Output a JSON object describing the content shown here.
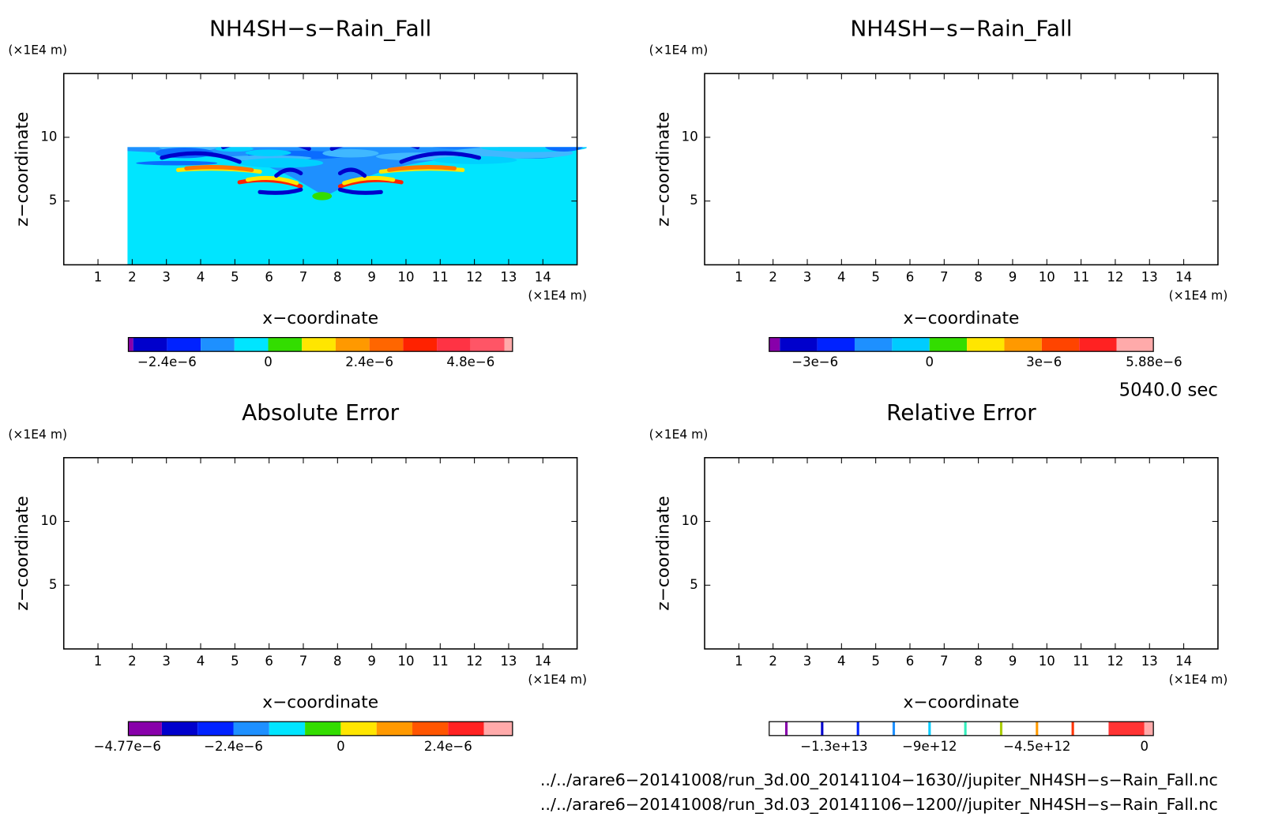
{
  "chart_data": [
    {
      "type": "contour",
      "title": "NH4SH−s−Rain_Fall",
      "xlabel": "x−coordinate",
      "ylabel": "z−coordinate",
      "x_unit": "(×1E4 m)",
      "y_unit": "(×1E4 m)",
      "xlim": [
        0,
        15
      ],
      "ylim": [
        0,
        15
      ],
      "xticks": [
        1,
        2,
        3,
        4,
        5,
        6,
        7,
        8,
        9,
        10,
        11,
        12,
        13,
        14
      ],
      "yticks": [
        5,
        10
      ],
      "colorbar": {
        "levels": [
          -3.2e-06,
          -2.4e-06,
          -1.6e-06,
          -8e-07,
          0,
          8e-07,
          1.6e-06,
          2.4e-06,
          3.2e-06,
          4e-06,
          4.8e-06,
          5.6e-06
        ],
        "colors": [
          "#8800aa",
          "#0000cc",
          "#0022ff",
          "#1e90ff",
          "#00e5ff",
          "#33dd00",
          "#ffe600",
          "#ff9900",
          "#ff6600",
          "#ff2200",
          "#ff3344",
          "#ff5566",
          "#ffaaaa"
        ],
        "ticks": [
          {
            "value": -2.4e-06,
            "label": "−2.4e−6"
          },
          0,
          {
            "value": 2.4e-06,
            "label": "2.4e−6"
          },
          {
            "value": 4.8e-06,
            "label": "4.8e−6"
          }
        ]
      }
    },
    {
      "type": "contour",
      "title": "NH4SH−s−Rain_Fall",
      "xlabel": "x−coordinate",
      "ylabel": "z−coordinate",
      "x_unit": "(×1E4 m)",
      "y_unit": "(×1E4 m)",
      "xlim": [
        0,
        15
      ],
      "ylim": [
        0,
        15
      ],
      "xticks": [
        1,
        2,
        3,
        4,
        5,
        6,
        7,
        8,
        9,
        10,
        11,
        12,
        13,
        14
      ],
      "yticks": [
        5,
        10
      ],
      "colorbar": {
        "levels": [
          -3.92e-06,
          -2.94e-06,
          -1.96e-06,
          -9.8e-07,
          0,
          9.8e-07,
          1.96e-06,
          2.94e-06,
          3.92e-06,
          4.9e-06
        ],
        "colors": [
          "#8800aa",
          "#0000cc",
          "#0022ff",
          "#1e90ff",
          "#00ccff",
          "#33dd00",
          "#ffe600",
          "#ff9900",
          "#ff4400",
          "#ff2222",
          "#ffaaaa"
        ],
        "ticks": [
          {
            "value": -3e-06,
            "label": "−3e−6"
          },
          0,
          {
            "value": 3e-06,
            "label": "3e−6"
          },
          {
            "value": 5.88e-06,
            "label": "5.88e−6"
          }
        ]
      }
    },
    {
      "type": "contour",
      "title": "Absolute Error",
      "xlabel": "x−coordinate",
      "ylabel": "z−coordinate",
      "x_unit": "(×1E4 m)",
      "y_unit": "(×1E4 m)",
      "xlim": [
        0,
        15
      ],
      "ylim": [
        0,
        15
      ],
      "xticks": [
        1,
        2,
        3,
        4,
        5,
        6,
        7,
        8,
        9,
        10,
        11,
        12,
        13,
        14
      ],
      "yticks": [
        5,
        10
      ],
      "colorbar": {
        "levels": [
          -4e-06,
          -3.2e-06,
          -2.4e-06,
          -1.6e-06,
          -8e-07,
          0,
          8e-07,
          1.6e-06,
          2.4e-06,
          3.2e-06
        ],
        "colors": [
          "#8800aa",
          "#0000cc",
          "#0022ff",
          "#1e90ff",
          "#00e5ff",
          "#33dd00",
          "#ffe600",
          "#ff9900",
          "#ff5500",
          "#ff2222",
          "#ffaaaa"
        ],
        "ticks": [
          {
            "value": -4.77e-06,
            "label": "−4.77e−6"
          },
          {
            "value": -2.4e-06,
            "label": "−2.4e−6"
          },
          0,
          {
            "value": 2.4e-06,
            "label": "2.4e−6"
          }
        ]
      }
    },
    {
      "type": "contour",
      "title": "Relative Error",
      "xlabel": "x−coordinate",
      "ylabel": "z−coordinate",
      "x_unit": "(×1E4 m)",
      "y_unit": "(×1E4 m)",
      "xlim": [
        0,
        15
      ],
      "ylim": [
        0,
        15
      ],
      "xticks": [
        1,
        2,
        3,
        4,
        5,
        6,
        7,
        8,
        9,
        10,
        11,
        12,
        13,
        14
      ],
      "yticks": [
        5,
        10
      ],
      "colorbar": {
        "levels": [
          -15000000000000.0,
          -13500000000000.0,
          -12000000000000.0,
          -10500000000000.0,
          -9000000000000.0,
          -7500000000000.0,
          -6000000000000.0,
          -4500000000000.0,
          -3000000000000.0,
          -1500000000000.0,
          0
        ],
        "colors": [
          "#ffffff",
          "#ffffff",
          "#ffffff",
          "#ffffff",
          "#ffffff",
          "#ffffff",
          "#ffffff",
          "#ffffff",
          "#ffffff",
          "#ffffff",
          "#ff3333",
          "#ffaaaa"
        ],
        "line_colors": [
          "#8800aa",
          "#0000cc",
          "#0022ff",
          "#1e90ff",
          "#00ccff",
          "#33eebb",
          "#aacc00",
          "#ff9900",
          "#ff3300"
        ],
        "ticks": [
          {
            "value": -13000000000000.0,
            "label": "−1.3e+13"
          },
          {
            "value": -9000000000000.0,
            "label": "−9e+12"
          },
          {
            "value": -4500000000000.0,
            "label": "−4.5e+12"
          },
          0
        ]
      }
    }
  ],
  "time": "5040.0 sec",
  "files": [
    "../../arare6−20141008/run_3d.00_20141104−1630//jupiter_NH4SH−s−Rain_Fall.nc",
    "../../arare6−20141008/run_3d.03_20141106−1200//jupiter_NH4SH−s−Rain_Fall.nc"
  ]
}
